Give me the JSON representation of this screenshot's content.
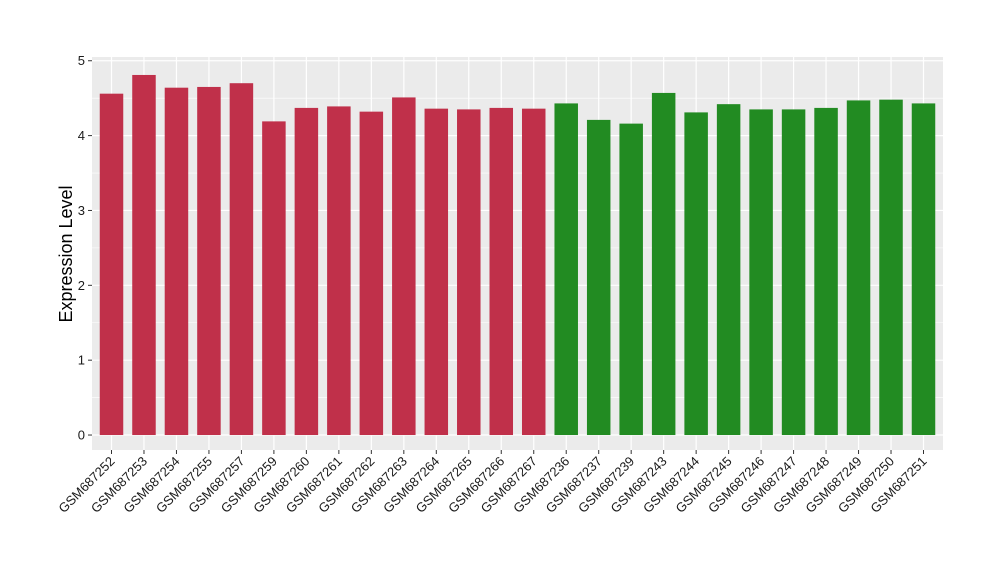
{
  "chart_data": {
    "type": "bar",
    "title": "",
    "xlabel": "",
    "ylabel": "Expression Level",
    "ylim": [
      -0.2,
      5.05
    ],
    "yticks": [
      0,
      1,
      2,
      3,
      4,
      5
    ],
    "grid": true,
    "legend": "none",
    "colors": {
      "group1": "#C0304A",
      "group2": "#228B22",
      "panel": "#EBEBEB",
      "grid": "#FFFFFF"
    },
    "categories": [
      "GSM687252",
      "GSM687253",
      "GSM687254",
      "GSM687255",
      "GSM687257",
      "GSM687259",
      "GSM687260",
      "GSM687261",
      "GSM687262",
      "GSM687263",
      "GSM687264",
      "GSM687265",
      "GSM687266",
      "GSM687267",
      "GSM687236",
      "GSM687237",
      "GSM687239",
      "GSM687243",
      "GSM687244",
      "GSM687245",
      "GSM687246",
      "GSM687247",
      "GSM687248",
      "GSM687249",
      "GSM687250",
      "GSM687251"
    ],
    "values": [
      4.56,
      4.81,
      4.64,
      4.65,
      4.7,
      4.19,
      4.37,
      4.39,
      4.32,
      4.51,
      4.36,
      4.35,
      4.37,
      4.36,
      4.43,
      4.21,
      4.16,
      4.57,
      4.31,
      4.42,
      4.35,
      4.35,
      4.37,
      4.47,
      4.48,
      4.43
    ],
    "groups": [
      "group1",
      "group1",
      "group1",
      "group1",
      "group1",
      "group1",
      "group1",
      "group1",
      "group1",
      "group1",
      "group1",
      "group1",
      "group1",
      "group1",
      "group2",
      "group2",
      "group2",
      "group2",
      "group2",
      "group2",
      "group2",
      "group2",
      "group2",
      "group2",
      "group2",
      "group2"
    ]
  }
}
